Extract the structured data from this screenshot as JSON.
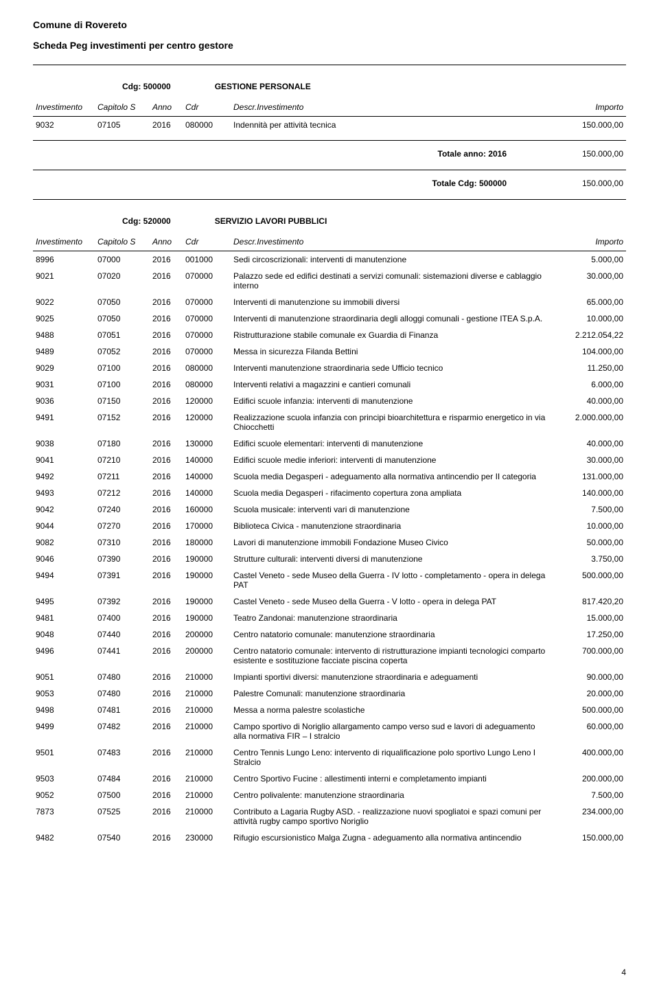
{
  "header": {
    "org": "Comune di Rovereto",
    "doc_title": "Scheda Peg investimenti per centro gestore"
  },
  "columns": {
    "investimento": "Investimento",
    "capitolo": "Capitolo S",
    "anno": "Anno",
    "cdr": "Cdr",
    "descr": "Descr.Investimento",
    "importo": "Importo"
  },
  "sections": [
    {
      "cdg_label": "Cdg:",
      "cdg_code": "500000",
      "cdg_name": "GESTIONE PERSONALE",
      "rows": [
        {
          "inv": "9032",
          "cap": "07105",
          "anno": "2016",
          "cdr": "080000",
          "descr": "Indennità per attività tecnica",
          "imp": "150.000,00"
        }
      ],
      "totals": [
        {
          "label": "Totale anno: 2016",
          "value": "150.000,00"
        },
        {
          "label": "Totale Cdg: 500000",
          "value": "150.000,00"
        }
      ]
    },
    {
      "cdg_label": "Cdg:",
      "cdg_code": "520000",
      "cdg_name": "SERVIZIO LAVORI PUBBLICI",
      "rows": [
        {
          "inv": "8996",
          "cap": "07000",
          "anno": "2016",
          "cdr": "001000",
          "descr": "Sedi circoscrizionali: interventi di manutenzione",
          "imp": "5.000,00"
        },
        {
          "inv": "9021",
          "cap": "07020",
          "anno": "2016",
          "cdr": "070000",
          "descr": "Palazzo sede ed edifici destinati a servizi comunali: sistemazioni diverse e cablaggio interno",
          "imp": "30.000,00"
        },
        {
          "inv": "9022",
          "cap": "07050",
          "anno": "2016",
          "cdr": "070000",
          "descr": "Interventi di manutenzione su immobili diversi",
          "imp": "65.000,00"
        },
        {
          "inv": "9025",
          "cap": "07050",
          "anno": "2016",
          "cdr": "070000",
          "descr": "Interventi di manutenzione straordinaria degli alloggi comunali - gestione ITEA S.p.A.",
          "imp": "10.000,00"
        },
        {
          "inv": "9488",
          "cap": "07051",
          "anno": "2016",
          "cdr": "070000",
          "descr": "Ristrutturazione stabile comunale ex Guardia di Finanza",
          "imp": "2.212.054,22"
        },
        {
          "inv": "9489",
          "cap": "07052",
          "anno": "2016",
          "cdr": "070000",
          "descr": "Messa in sicurezza Filanda Bettini",
          "imp": "104.000,00"
        },
        {
          "inv": "9029",
          "cap": "07100",
          "anno": "2016",
          "cdr": "080000",
          "descr": "Interventi manutenzione straordinaria sede Ufficio tecnico",
          "imp": "11.250,00"
        },
        {
          "inv": "9031",
          "cap": "07100",
          "anno": "2016",
          "cdr": "080000",
          "descr": "Interventi relativi a magazzini e cantieri comunali",
          "imp": "6.000,00"
        },
        {
          "inv": "9036",
          "cap": "07150",
          "anno": "2016",
          "cdr": "120000",
          "descr": "Edifici scuole infanzia: interventi di manutenzione",
          "imp": "40.000,00"
        },
        {
          "inv": "9491",
          "cap": "07152",
          "anno": "2016",
          "cdr": "120000",
          "descr": "Realizzazione scuola infanzia con principi bioarchitettura e risparmio energetico in via Chiocchetti",
          "imp": "2.000.000,00"
        },
        {
          "inv": "9038",
          "cap": "07180",
          "anno": "2016",
          "cdr": "130000",
          "descr": "Edifici scuole elementari: interventi di manutenzione",
          "imp": "40.000,00"
        },
        {
          "inv": "9041",
          "cap": "07210",
          "anno": "2016",
          "cdr": "140000",
          "descr": "Edifici scuole medie inferiori: interventi di manutenzione",
          "imp": "30.000,00"
        },
        {
          "inv": "9492",
          "cap": "07211",
          "anno": "2016",
          "cdr": "140000",
          "descr": "Scuola media Degasperi - adeguamento alla normativa antincendio per II categoria",
          "imp": "131.000,00"
        },
        {
          "inv": "9493",
          "cap": "07212",
          "anno": "2016",
          "cdr": "140000",
          "descr": "Scuola media Degasperi - rifacimento copertura zona ampliata",
          "imp": "140.000,00"
        },
        {
          "inv": "9042",
          "cap": "07240",
          "anno": "2016",
          "cdr": "160000",
          "descr": "Scuola musicale: interventi vari di manutenzione",
          "imp": "7.500,00"
        },
        {
          "inv": "9044",
          "cap": "07270",
          "anno": "2016",
          "cdr": "170000",
          "descr": "Biblioteca Civica - manutenzione straordinaria",
          "imp": "10.000,00"
        },
        {
          "inv": "9082",
          "cap": "07310",
          "anno": "2016",
          "cdr": "180000",
          "descr": "Lavori di manutenzione immobili Fondazione Museo Civico",
          "imp": "50.000,00"
        },
        {
          "inv": "9046",
          "cap": "07390",
          "anno": "2016",
          "cdr": "190000",
          "descr": "Strutture culturali: interventi diversi di manutenzione",
          "imp": "3.750,00"
        },
        {
          "inv": "9494",
          "cap": "07391",
          "anno": "2016",
          "cdr": "190000",
          "descr": "Castel Veneto - sede Museo della Guerra - IV lotto - completamento - opera in delega PAT",
          "imp": "500.000,00"
        },
        {
          "inv": "9495",
          "cap": "07392",
          "anno": "2016",
          "cdr": "190000",
          "descr": "Castel Veneto - sede Museo della Guerra - V lotto - opera in delega PAT",
          "imp": "817.420,20"
        },
        {
          "inv": "9481",
          "cap": "07400",
          "anno": "2016",
          "cdr": "190000",
          "descr": "Teatro Zandonai: manutenzione straordinaria",
          "imp": "15.000,00"
        },
        {
          "inv": "9048",
          "cap": "07440",
          "anno": "2016",
          "cdr": "200000",
          "descr": "Centro natatorio comunale: manutenzione straordinaria",
          "imp": "17.250,00"
        },
        {
          "inv": "9496",
          "cap": "07441",
          "anno": "2016",
          "cdr": "200000",
          "descr": "Centro natatorio comunale: intervento di ristrutturazione impianti tecnologici comparto esistente e sostituzione facciate piscina coperta",
          "imp": "700.000,00"
        },
        {
          "inv": "9051",
          "cap": "07480",
          "anno": "2016",
          "cdr": "210000",
          "descr": "Impianti sportivi diversi: manutenzione straordinaria e adeguamenti",
          "imp": "90.000,00"
        },
        {
          "inv": "9053",
          "cap": "07480",
          "anno": "2016",
          "cdr": "210000",
          "descr": "Palestre Comunali: manutenzione straordinaria",
          "imp": "20.000,00"
        },
        {
          "inv": "9498",
          "cap": "07481",
          "anno": "2016",
          "cdr": "210000",
          "descr": "Messa a norma palestre scolastiche",
          "imp": "500.000,00"
        },
        {
          "inv": "9499",
          "cap": "07482",
          "anno": "2016",
          "cdr": "210000",
          "descr": "Campo sportivo di Noriglio allargamento campo verso sud e lavori di adeguamento alla normativa FIR – I stralcio",
          "imp": "60.000,00"
        },
        {
          "inv": "9501",
          "cap": "07483",
          "anno": "2016",
          "cdr": "210000",
          "descr": "Centro Tennis Lungo Leno: intervento di riqualificazione polo sportivo Lungo Leno I Stralcio",
          "imp": "400.000,00"
        },
        {
          "inv": "9503",
          "cap": "07484",
          "anno": "2016",
          "cdr": "210000",
          "descr": "Centro Sportivo Fucine : allestimenti interni e completamento impianti",
          "imp": "200.000,00"
        },
        {
          "inv": "9052",
          "cap": "07500",
          "anno": "2016",
          "cdr": "210000",
          "descr": "Centro polivalente: manutenzione straordinaria",
          "imp": "7.500,00"
        },
        {
          "inv": "7873",
          "cap": "07525",
          "anno": "2016",
          "cdr": "210000",
          "descr": "Contributo a Lagaria Rugby ASD. - realizzazione nuovi spogliatoi e spazi comuni per attività rugby campo sportivo Noriglio",
          "imp": "234.000,00"
        },
        {
          "inv": "9482",
          "cap": "07540",
          "anno": "2016",
          "cdr": "230000",
          "descr": "Rifugio escursionistico Malga Zugna - adeguamento alla normativa antincendio",
          "imp": "150.000,00"
        }
      ],
      "totals": []
    }
  ],
  "footer": {
    "page_number": "4"
  }
}
